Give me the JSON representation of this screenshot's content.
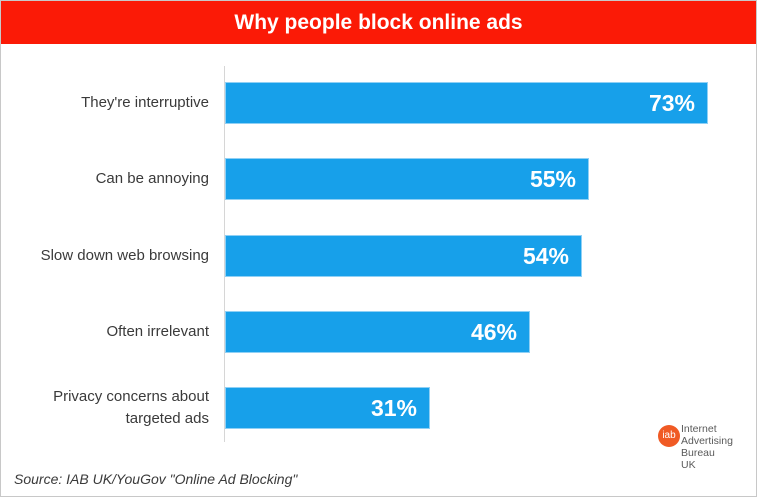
{
  "header": {
    "title": "Why people block online ads"
  },
  "chart_data": {
    "type": "bar",
    "orientation": "horizontal",
    "title": "Why people block online ads",
    "categories": [
      "They're interruptive",
      "Can be annoying",
      "Slow down web browsing",
      "Often irrelevant",
      "Privacy concerns about targeted ads"
    ],
    "values": [
      73,
      55,
      54,
      46,
      31
    ],
    "value_labels": [
      "73%",
      "55%",
      "54%",
      "46%",
      "31%"
    ],
    "xlabel": "",
    "ylabel": "",
    "unit": "%",
    "grid": false,
    "legend": null,
    "bar_color": "#17a0ea"
  },
  "rows": [
    {
      "label_lines": [
        "They're interruptive"
      ],
      "value": 73,
      "value_label": "73%"
    },
    {
      "label_lines": [
        "Can be annoying"
      ],
      "value": 55,
      "value_label": "55%"
    },
    {
      "label_lines": [
        "Slow down web browsing"
      ],
      "value": 54,
      "value_label": "54%"
    },
    {
      "label_lines": [
        "Often irrelevant"
      ],
      "value": 46,
      "value_label": "46%"
    },
    {
      "label_lines": [
        "Privacy concerns about",
        "targeted ads"
      ],
      "value": 31,
      "value_label": "31%"
    }
  ],
  "footer": {
    "source": "Source: IAB UK/YouGov \"Online Ad Blocking\""
  },
  "logo": {
    "mark": "iab",
    "lines": [
      "Internet",
      "Advertising",
      "Bureau",
      "UK"
    ],
    "color": "#f05a24"
  },
  "colors": {
    "title_bg": "#fb1a06",
    "bar": "#17a0ea"
  }
}
